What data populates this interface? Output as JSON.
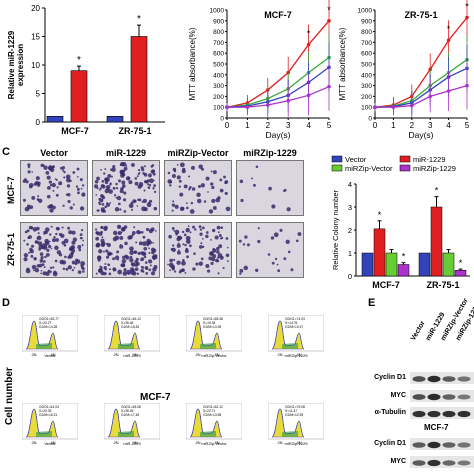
{
  "panel_letters": {
    "c": "C",
    "d": "D",
    "e": "E"
  },
  "chart_data": [
    {
      "type": "bar",
      "ylabel": "Relative miR-1229\nexpression",
      "ylabel_lines": [
        "Relative miR-1229",
        "expression"
      ],
      "categories": [
        "MCF-7",
        "ZR-75-1"
      ],
      "ylim": [
        0,
        20
      ],
      "yticks": [
        "0",
        "5",
        "10",
        "15",
        "20"
      ],
      "series": [
        {
          "values": [
            1,
            1
          ],
          "errors": [
            0,
            0
          ],
          "color": "#3344bb"
        },
        {
          "values": [
            9,
            15
          ],
          "errors": [
            0.8,
            2.0
          ],
          "color": "#e02020"
        }
      ],
      "significance": [
        "*",
        "*"
      ]
    },
    {
      "type": "line",
      "title": "MCF-7",
      "ylabel": "MTT absorbance(%)",
      "xlabel": "Day(s)",
      "x": [
        0,
        1,
        2,
        3,
        4,
        5
      ],
      "ylim": [
        0,
        1000
      ],
      "yticks": [
        "0",
        "100",
        "200",
        "300",
        "400",
        "500",
        "600",
        "700",
        "800",
        "900",
        "1000"
      ],
      "series": [
        {
          "values": [
            100,
            140,
            260,
            420,
            680,
            900
          ],
          "color": "#e02020"
        },
        {
          "values": [
            100,
            120,
            180,
            270,
            420,
            560
          ],
          "color": "#33aa33"
        },
        {
          "values": [
            100,
            110,
            150,
            210,
            330,
            470
          ],
          "color": "#3344bb"
        },
        {
          "values": [
            100,
            100,
            120,
            160,
            210,
            290
          ],
          "color": "#aa33cc"
        }
      ],
      "significance": {
        "x": [
          4,
          5
        ],
        "marks": [
          "*",
          "*"
        ]
      }
    },
    {
      "type": "line",
      "title": "ZR-75-1",
      "ylabel": "MTT absorbance(%)",
      "xlabel": "Day(s)",
      "x": [
        0,
        1,
        2,
        3,
        4,
        5
      ],
      "ylim": [
        0,
        1000
      ],
      "yticks": [
        "0",
        "100",
        "200",
        "300",
        "400",
        "500",
        "600",
        "700",
        "800",
        "900",
        "1000"
      ],
      "series": [
        {
          "values": [
            100,
            120,
            200,
            450,
            720,
            930
          ],
          "color": "#e02020"
        },
        {
          "values": [
            100,
            110,
            160,
            300,
            420,
            540
          ],
          "color": "#33aa33"
        },
        {
          "values": [
            100,
            105,
            140,
            260,
            380,
            460
          ],
          "color": "#3344bb"
        },
        {
          "values": [
            100,
            100,
            115,
            200,
            250,
            300
          ],
          "color": "#aa33cc"
        }
      ],
      "significance": {
        "x": [
          4,
          5
        ],
        "marks": [
          "*",
          "*"
        ]
      }
    },
    {
      "type": "bar",
      "ylabel": "Relative Colony number",
      "categories": [
        "MCF-7",
        "ZR-75-1"
      ],
      "ylim": [
        0,
        4
      ],
      "yticks": [
        "0",
        "1",
        "2",
        "3",
        "4"
      ],
      "legend": [
        "Vector",
        "miR-1229",
        "miRZip-Vector",
        "miRZip-1229"
      ],
      "series": [
        {
          "name": "Vector",
          "values": [
            1,
            1
          ],
          "errors": [
            0,
            0
          ],
          "color": "#3344bb"
        },
        {
          "name": "miR-1229",
          "values": [
            2.05,
            3.0
          ],
          "errors": [
            0.35,
            0.45
          ],
          "color": "#e02020"
        },
        {
          "name": "miRZip-Vector",
          "values": [
            1.0,
            1.0
          ],
          "errors": [
            0.15,
            0.15
          ],
          "color": "#66cc33"
        },
        {
          "name": "miRZip-1229",
          "values": [
            0.5,
            0.25
          ],
          "errors": [
            0.08,
            0.05
          ],
          "color": "#aa33cc"
        }
      ],
      "significance": [
        "*",
        "*",
        "*",
        "*"
      ]
    }
  ],
  "colony": {
    "columns": [
      "Vector",
      "miR-1229",
      "miRZip-Vector",
      "miRZip-1229"
    ],
    "rows": [
      "MCF-7",
      "ZR-75-1"
    ],
    "density": [
      [
        0.5,
        0.8,
        0.35,
        0.06
      ],
      [
        0.8,
        0.95,
        0.6,
        0.15
      ]
    ]
  },
  "facs": {
    "ylabel": "Cell number",
    "group_label": "MCF-7",
    "axis_labels": [
      "2N",
      "4N"
    ],
    "panels": [
      {
        "name": "Vector",
        "stats": "G0/G1=63.77\nS=20.27\nG2/M=14.28"
      },
      {
        "name": "miR-1229",
        "stats": "G0/G1=46.12\nS=36.46\nG2/M=15.81"
      },
      {
        "name": "miRZip-Vector",
        "stats": "G0/G1=65.48\nS=19.34\nG2/M=13.39"
      },
      {
        "name": "miRZip-1229",
        "stats": "G0/G1=74.03\nS=14.76\nG2/M=10.47"
      },
      {
        "name": "Vector",
        "stats": "G0/G1=61.04\nS=20.33\nG2/M=16.21"
      },
      {
        "name": "miR-1229",
        "stats": "G0/G1=45.08\nS=36.45\nG2/M=17.45"
      },
      {
        "name": "miRZip-Vector",
        "stats": "G0/G1=62.12\nS=22.71\nG2/M=13.55"
      },
      {
        "name": "miRZip-1229",
        "stats": "G0/G1=75.08\nS=11.47\nG2/M=12.93"
      }
    ]
  },
  "western": {
    "lanes": [
      "Vector",
      "miR-1229",
      "miRZip-Vector",
      "miRZip-1229"
    ],
    "rows": [
      "Cyclin D1",
      "MYC",
      "α-Tubulin"
    ],
    "cell_line": "MCF-7",
    "rows_second": [
      "Cyclin D1",
      "MYC"
    ]
  }
}
